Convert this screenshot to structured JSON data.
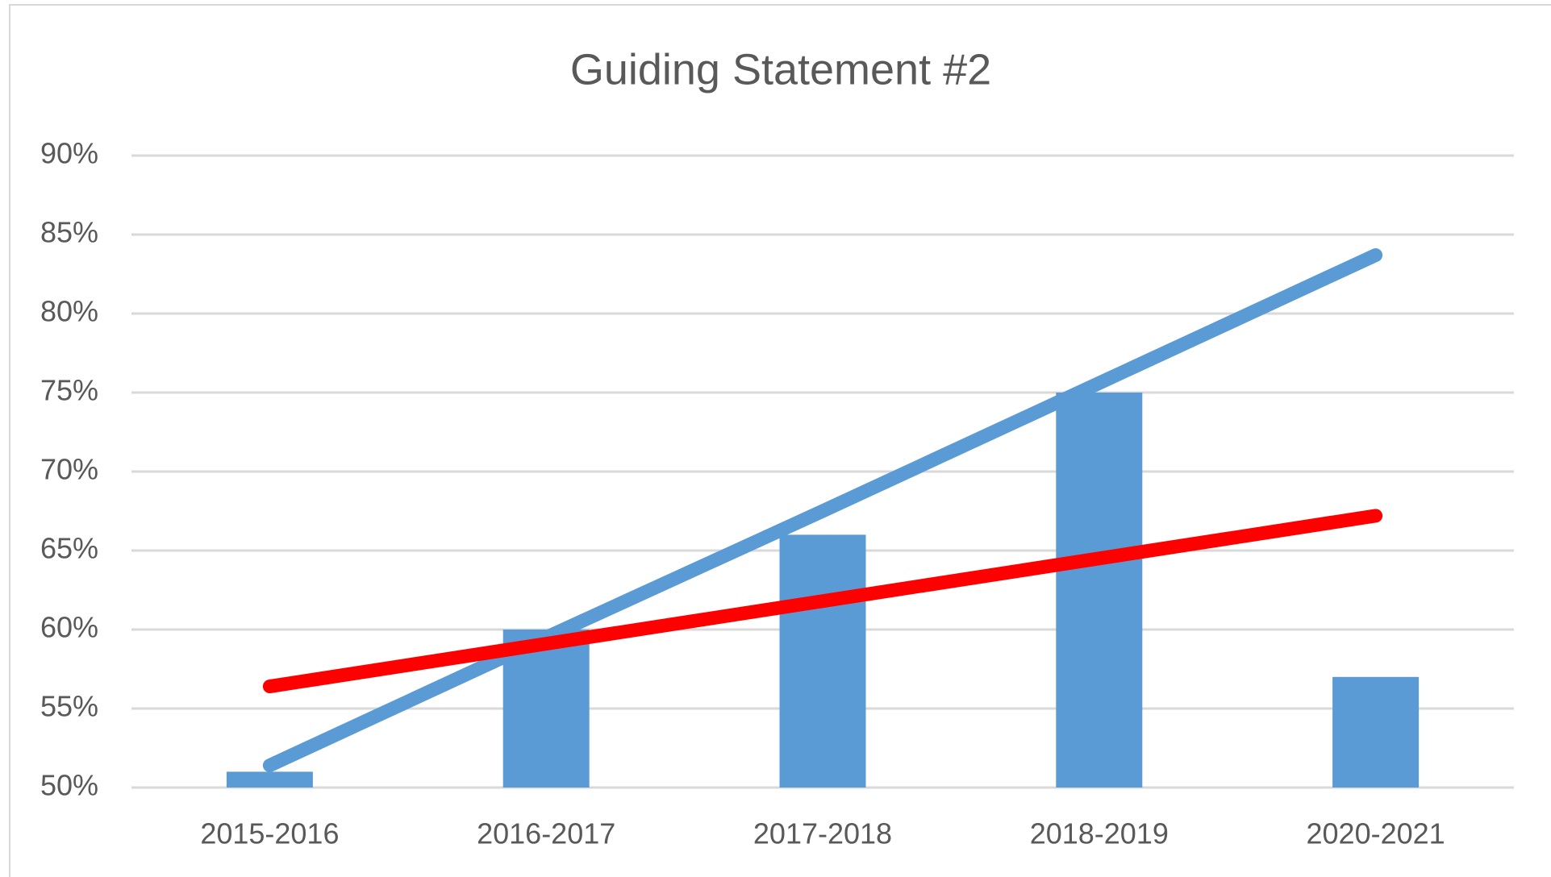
{
  "chart_data": {
    "type": "bar",
    "title": "Guiding Statement #2",
    "categories": [
      "2015-2016",
      "2016-2017",
      "2017-2018",
      "2018-2019",
      "2020-2021"
    ],
    "series": [
      {
        "type": "bar",
        "color": "#5b9bd5",
        "values": [
          51,
          60,
          66,
          75,
          57
        ]
      },
      {
        "type": "line",
        "color": "#5b9bd5",
        "values": [
          51.4,
          59.5,
          67.5,
          75.6,
          83.7
        ]
      },
      {
        "type": "line",
        "color": "#ff0000",
        "values": [
          56.4,
          59.1,
          61.8,
          64.5,
          67.2
        ]
      }
    ],
    "ylim": [
      50,
      90
    ],
    "yticks": [
      {
        "value": 50,
        "label": "50%"
      },
      {
        "value": 55,
        "label": "55%"
      },
      {
        "value": 60,
        "label": "60%"
      },
      {
        "value": 65,
        "label": "65%"
      },
      {
        "value": 70,
        "label": "70%"
      },
      {
        "value": 75,
        "label": "75%"
      },
      {
        "value": 80,
        "label": "80%"
      },
      {
        "value": 85,
        "label": "85%"
      },
      {
        "value": 90,
        "label": "90%"
      }
    ],
    "grid": true
  }
}
